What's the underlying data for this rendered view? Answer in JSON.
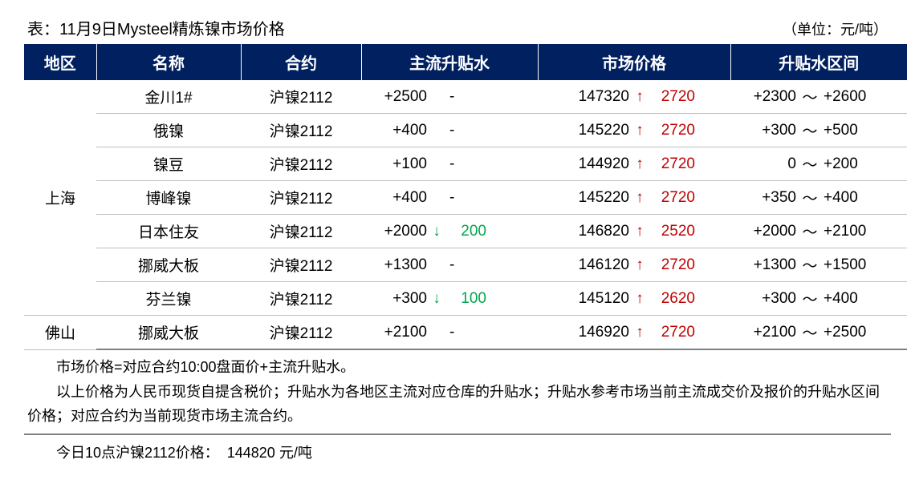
{
  "title": "表：11月9日Mysteel精炼镍市场价格",
  "unit": "（单位：元/吨）",
  "columns": [
    "地区",
    "名称",
    "合约",
    "主流升贴水",
    "市场价格",
    "升贴水区间"
  ],
  "colors": {
    "header_bg": "#002060",
    "header_fg": "#ffffff",
    "up": "#c00000",
    "down": "#00a650",
    "border": "#bfbfbf",
    "text": "#000000",
    "bg": "#ffffff"
  },
  "regions": [
    {
      "name": "上海",
      "rows": [
        {
          "name": "金川1#",
          "contract": "沪镍2112",
          "premium": "+2500",
          "premium_dir": "",
          "premium_delta": "-",
          "price": "147320",
          "price_dir": "up",
          "price_delta": "2720",
          "range_low": "+2300",
          "range_high": "+2600"
        },
        {
          "name": "俄镍",
          "contract": "沪镍2112",
          "premium": "+400",
          "premium_dir": "",
          "premium_delta": "-",
          "price": "145220",
          "price_dir": "up",
          "price_delta": "2720",
          "range_low": "+300",
          "range_high": "+500"
        },
        {
          "name": "镍豆",
          "contract": "沪镍2112",
          "premium": "+100",
          "premium_dir": "",
          "premium_delta": "-",
          "price": "144920",
          "price_dir": "up",
          "price_delta": "2720",
          "range_low": "0",
          "range_high": "+200"
        },
        {
          "name": "博峰镍",
          "contract": "沪镍2112",
          "premium": "+400",
          "premium_dir": "",
          "premium_delta": "-",
          "price": "145220",
          "price_dir": "up",
          "price_delta": "2720",
          "range_low": "+350",
          "range_high": "+400"
        },
        {
          "name": "日本住友",
          "contract": "沪镍2112",
          "premium": "+2000",
          "premium_dir": "down",
          "premium_delta": "200",
          "price": "146820",
          "price_dir": "up",
          "price_delta": "2520",
          "range_low": "+2000",
          "range_high": "+2100"
        },
        {
          "name": "挪威大板",
          "contract": "沪镍2112",
          "premium": "+1300",
          "premium_dir": "",
          "premium_delta": "-",
          "price": "146120",
          "price_dir": "up",
          "price_delta": "2720",
          "range_low": "+1300",
          "range_high": "+1500"
        },
        {
          "name": "芬兰镍",
          "contract": "沪镍2112",
          "premium": "+300",
          "premium_dir": "down",
          "premium_delta": "100",
          "price": "145120",
          "price_dir": "up",
          "price_delta": "2620",
          "range_low": "+300",
          "range_high": "+400"
        }
      ]
    },
    {
      "name": "佛山",
      "rows": [
        {
          "name": "挪威大板",
          "contract": "沪镍2112",
          "premium": "+2100",
          "premium_dir": "",
          "premium_delta": "-",
          "price": "146920",
          "price_dir": "up",
          "price_delta": "2720",
          "range_low": "+2100",
          "range_high": "+2500"
        }
      ]
    }
  ],
  "notes": [
    "市场价格=对应合约10:00盘面价+主流升贴水。",
    "以上价格为人民币现货自提含税价；升贴水为各地区主流对应仓库的升贴水；升贴水参考市场当前主流成交价及报价的升贴水区间价格；对应合约为当前现货市场主流合约。"
  ],
  "footer": {
    "label": "今日10点沪镍2112价格：",
    "value": "144820 元/吨"
  },
  "arrows": {
    "up": "↑",
    "down": "↓"
  }
}
